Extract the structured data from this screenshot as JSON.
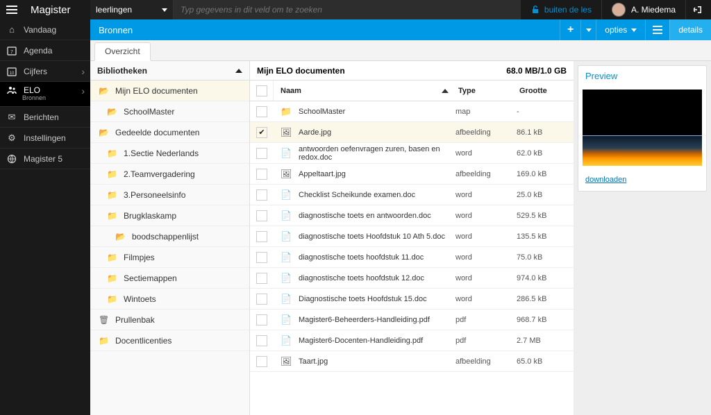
{
  "brand": "Magister",
  "search": {
    "scope": "leerlingen",
    "placeholder": "Typ gegevens in dit veld om te zoeken"
  },
  "lesson_btn": "buiten de les",
  "user": "A. Miedema",
  "nav": {
    "vandaag": "Vandaag",
    "agenda": "Agenda",
    "cijfers": "Cijfers",
    "elo": "ELO",
    "elo_sub": "Bronnen",
    "berichten": "Berichten",
    "instellingen": "Instellingen",
    "magister5": "Magister 5"
  },
  "blue": {
    "title": "Bronnen",
    "opties": "opties",
    "details": "details"
  },
  "tab_overzicht": "Overzicht",
  "lib": {
    "header": "Bibliotheken",
    "mijn_elo": "Mijn ELO documenten",
    "schoolmaster": "SchoolMaster",
    "gedeeld": "Gedeelde documenten",
    "items": {
      "i1": "1.Sectie Nederlands",
      "i2": "2.Teamvergadering",
      "i3": "3.Personeelsinfo",
      "i4": "Brugklaskamp",
      "i5": "boodschappenlijst",
      "i6": "Filmpjes",
      "i7": "Sectiemappen",
      "i8": "Wintoets"
    },
    "prullenbak": "Prullenbak",
    "docent": "Docentlicenties"
  },
  "files": {
    "heading": "Mijn ELO documenten",
    "usage": "68.0 MB/1.0 GB",
    "col_name": "Naam",
    "col_type": "Type",
    "col_size": "Grootte",
    "rows": {
      "r0": {
        "name": "SchoolMaster",
        "type": "map",
        "size": "-"
      },
      "r1": {
        "name": "Aarde.jpg",
        "type": "afbeelding",
        "size": "86.1 kB"
      },
      "r2": {
        "name": "antwoorden oefenvragen zuren, basen en redox.doc",
        "type": "word",
        "size": "62.0 kB"
      },
      "r3": {
        "name": "Appeltaart.jpg",
        "type": "afbeelding",
        "size": "169.0 kB"
      },
      "r4": {
        "name": "Checklist Scheikunde examen.doc",
        "type": "word",
        "size": "25.0 kB"
      },
      "r5": {
        "name": "diagnostische toets en antwoorden.doc",
        "type": "word",
        "size": "529.5 kB"
      },
      "r6": {
        "name": "diagnostische toets Hoofdstuk 10 Ath 5.doc",
        "type": "word",
        "size": "135.5 kB"
      },
      "r7": {
        "name": "diagnostische toets hoofdstuk 11.doc",
        "type": "word",
        "size": "75.0 kB"
      },
      "r8": {
        "name": "diagnostische toets hoofdstuk 12.doc",
        "type": "word",
        "size": "974.0 kB"
      },
      "r9": {
        "name": "Diagnostische toets Hoofdstuk 15.doc",
        "type": "word",
        "size": "286.5 kB"
      },
      "r10": {
        "name": "Magister6-Beheerders-Handleiding.pdf",
        "type": "pdf",
        "size": "968.7 kB"
      },
      "r11": {
        "name": "Magister6-Docenten-Handleiding.pdf",
        "type": "pdf",
        "size": "2.7 MB"
      },
      "r12": {
        "name": "Taart.jpg",
        "type": "afbeelding",
        "size": "65.0 kB"
      }
    }
  },
  "preview": {
    "title": "Preview",
    "download": "downloaden"
  }
}
